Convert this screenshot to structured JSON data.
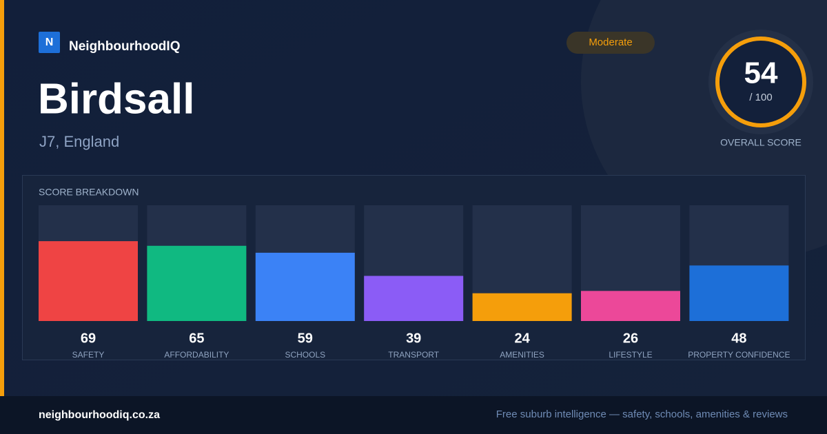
{
  "brand": {
    "logo_letter": "N",
    "name": "NeighbourhoodIQ"
  },
  "place": {
    "name": "Birdsall",
    "location": "J7, England"
  },
  "badge": "Moderate",
  "score": {
    "value": 54,
    "max_label": "/ 100",
    "caption": "OVERALL SCORE"
  },
  "chart_data": {
    "type": "bar",
    "title": "SCORE BREAKDOWN",
    "categories": [
      "SAFETY",
      "AFFORDABILITY",
      "SCHOOLS",
      "TRANSPORT",
      "AMENITIES",
      "LIFESTYLE",
      "PROPERTY CONFIDENCE"
    ],
    "values": [
      69,
      65,
      59,
      39,
      24,
      26,
      48
    ],
    "colors": [
      "#ef4444",
      "#10b981",
      "#3b82f6",
      "#8b5cf6",
      "#f59e0b",
      "#ec4899",
      "#1d6fd8"
    ],
    "ylim": [
      0,
      100
    ]
  },
  "footer": {
    "url": "neighbourhoodiq.co.za",
    "tagline": "Free suburb intelligence — safety, schools, amenities & reviews"
  }
}
